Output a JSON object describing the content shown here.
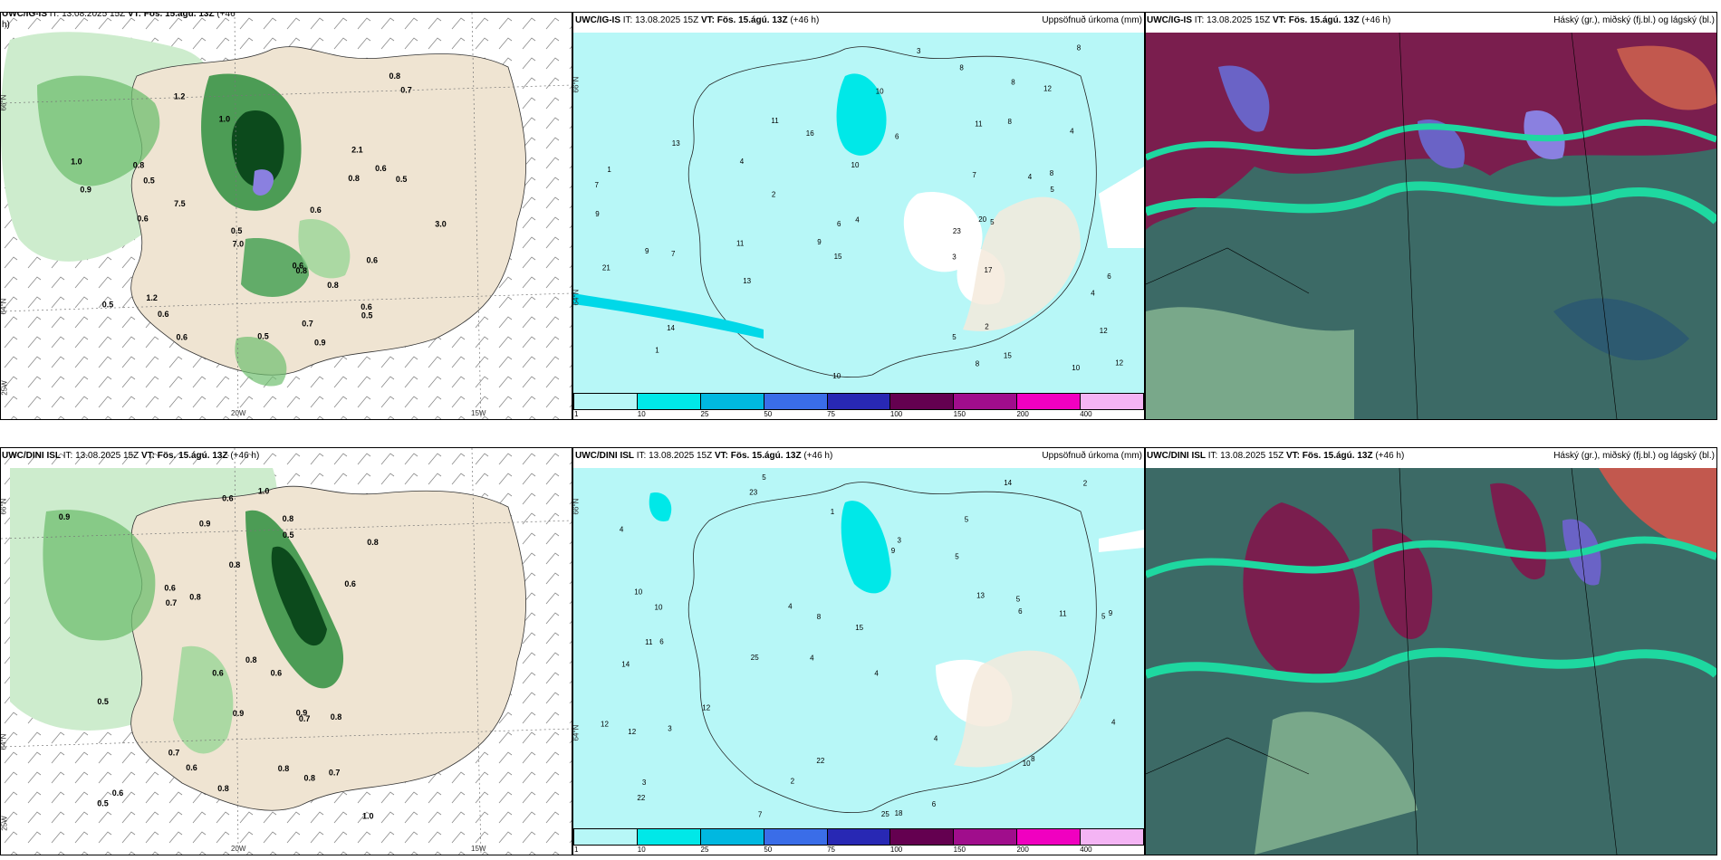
{
  "rows": [
    {
      "wind": {
        "model": "UWC/IG-IS",
        "it": "IT: 13.08.2025 15Z",
        "vt": "VT: Fös. 15.ágú. 13Z",
        "lead": "(+46",
        "lead2": "h)"
      },
      "precip": {
        "model": "UWC/IG-IS",
        "it": "IT: 13.08.2025 15Z",
        "vt": "VT: Fös. 15.ágú. 13Z",
        "lead": "(+46 h)",
        "title": "Uppsöfnuð úrkoma (mm)"
      },
      "cloud": {
        "model": "UWC/IG-IS",
        "it": "IT: 13.08.2025 15Z",
        "vt": "VT: Fös. 15.ágú. 13Z",
        "lead": "(+46 h)",
        "title": "Háský (gr.), miðský (fj.bl.) og lágský (bl.)"
      }
    },
    {
      "wind": {
        "model": "UWC/DINI ISL",
        "it": "IT: 13.08.2025 15Z",
        "vt": "VT: Fös. 15.ágú. 13Z",
        "lead": "(+46 h)",
        "lead2": ""
      },
      "precip": {
        "model": "UWC/DINI ISL",
        "it": "IT: 13.08.2025 15Z",
        "vt": "VT: Fös. 15.ágú. 13Z",
        "lead": "(+46 h)",
        "title": "Uppsöfnuð úrkoma (mm)"
      },
      "cloud": {
        "model": "UWC/DINI ISL",
        "it": "IT: 13.08.2025 15Z",
        "vt": "VT: Fös. 15.ágú. 13Z",
        "lead": "(+46 h)",
        "title": "Háský (gr.), miðský (fj.bl.) og lágský (bl.)"
      }
    }
  ],
  "axes": {
    "lat_n": "66°N",
    "lat_s": "64°N",
    "lon_w1": "20W",
    "lon_w2": "15W",
    "lon_w3": "25W"
  },
  "colorbar": {
    "labels": [
      "1",
      "10",
      "25",
      "50",
      "75",
      "100",
      "150",
      "200",
      "400"
    ],
    "colors": [
      "#b7f7f7",
      "#00e8e8",
      "#00b8e0",
      "#3a6de8",
      "#2828b4",
      "#640050",
      "#a00d8c",
      "#f000c0",
      "#f4b4f4"
    ]
  },
  "wind_values_top": [
    "0.9",
    "1.2",
    "1.2",
    "0.8",
    "0.6",
    "0.7",
    "3.0",
    "7.5",
    "7.0",
    "0.6",
    "0.5",
    "1.0",
    "0.5",
    "0.6",
    "0.8",
    "0.8",
    "0.9",
    "0.7",
    "0.6",
    "0.5",
    "0.6",
    "0.8",
    "0.6",
    "0.5",
    "0.6",
    "2.1",
    "0.6",
    "0.5",
    "0.5",
    "1.0",
    "0.8"
  ],
  "wind_values_bottom": [
    "0.5",
    "0.8",
    "0.8",
    "0.9",
    "0.9",
    "1.0",
    "0.7",
    "0.8",
    "0.8",
    "0.7",
    "1.0",
    "0.7",
    "0.6",
    "0.6",
    "0.8",
    "0.6",
    "0.9",
    "0.5",
    "0.6",
    "0.8",
    "0.9",
    "0.6",
    "0.8",
    "0.6",
    "0.7",
    "0.5",
    "0.8",
    "0.8",
    "0.6"
  ],
  "precip_values_top": [
    "3",
    "6",
    "4",
    "4",
    "5",
    "8",
    "8",
    "10",
    "12",
    "15",
    "20",
    "23",
    "21",
    "17",
    "13",
    "10",
    "12",
    "9",
    "8",
    "16",
    "15",
    "9",
    "7",
    "8",
    "5",
    "14",
    "13",
    "11",
    "12",
    "7",
    "4",
    "3",
    "1",
    "2",
    "2",
    "1",
    "6",
    "4",
    "5",
    "8",
    "9",
    "11",
    "10",
    "10",
    "7",
    "11",
    "8",
    "4",
    "6"
  ],
  "precip_values_bottom": [
    "5",
    "5",
    "5",
    "4",
    "4",
    "6",
    "4",
    "5",
    "14",
    "9",
    "15",
    "22",
    "23",
    "25",
    "25",
    "18",
    "22",
    "14",
    "13",
    "12",
    "10",
    "11",
    "9",
    "11",
    "12",
    "10",
    "8",
    "6",
    "8",
    "12",
    "10",
    "3",
    "3",
    "4",
    "4",
    "4",
    "5",
    "2",
    "2",
    "1",
    "3",
    "7",
    "6"
  ]
}
